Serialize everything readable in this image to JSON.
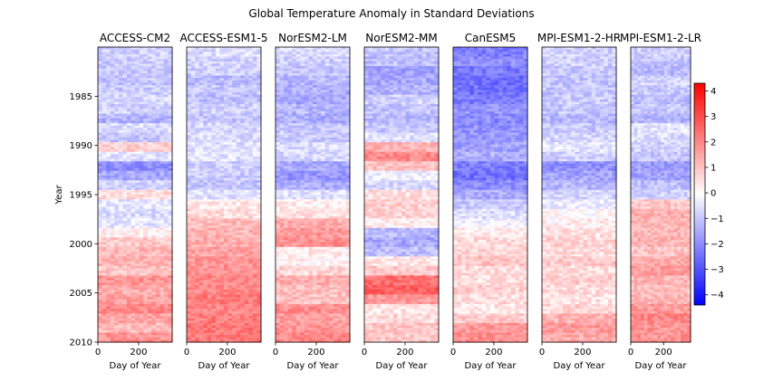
{
  "chart_data": {
    "type": "heatmap",
    "title": "Global Temperature Anomaly in Standard Deviations",
    "ylabel": "Year",
    "xlabel": "Day of Year",
    "x_range": [
      0,
      365
    ],
    "x_ticks": [
      0,
      200
    ],
    "y_range": [
      1980,
      2010
    ],
    "y_ticks": [
      1985,
      1990,
      1995,
      2000,
      2005,
      2010
    ],
    "colormap": "bwr",
    "colors": {
      "low": "#0000ff",
      "mid": "#ffffff",
      "high": "#ff0000"
    },
    "colorbar": {
      "vmin": -4.4,
      "vmax": 4.3,
      "ticks": [
        4,
        3,
        2,
        1,
        0,
        -1,
        -2,
        -3,
        -4
      ]
    },
    "panels": [
      {
        "name": "ACCESS-CM2",
        "yearly_anomaly": [
          -0.8,
          -0.9,
          -1.0,
          -1.0,
          -0.9,
          -0.7,
          -0.8,
          -1.3,
          -0.6,
          -1.0,
          0.8,
          -0.5,
          -1.9,
          -1.5,
          -0.8,
          0.6,
          -0.4,
          -0.6,
          -0.4,
          0.2,
          0.9,
          1.2,
          1.3,
          1.0,
          1.8,
          1.4,
          1.6,
          2.0,
          1.5,
          1.2,
          1.8
        ]
      },
      {
        "name": "ACCESS-ESM1-5",
        "yearly_anomaly": [
          -0.6,
          -0.8,
          -0.8,
          -1.2,
          -0.9,
          -1.1,
          -0.8,
          -1.0,
          -0.7,
          -0.6,
          -0.5,
          -0.4,
          -0.8,
          -0.9,
          -1.0,
          -0.5,
          0.4,
          0.6,
          1.1,
          1.3,
          1.4,
          1.6,
          1.8,
          1.8,
          2.0,
          2.0,
          2.2,
          2.0,
          2.2,
          2.3,
          2.2
        ]
      },
      {
        "name": "NorESM2-LM",
        "yearly_anomaly": [
          -0.6,
          -0.8,
          -1.0,
          -1.2,
          -1.4,
          -1.5,
          -1.2,
          -1.4,
          -1.0,
          -0.9,
          -0.6,
          -0.7,
          -1.5,
          -1.8,
          -1.4,
          -0.5,
          0.3,
          0.5,
          1.4,
          1.7,
          1.9,
          0.3,
          0.2,
          0.7,
          1.4,
          1.1,
          1.0,
          1.9,
          1.6,
          1.8,
          2.0
        ]
      },
      {
        "name": "NorESM2-MM",
        "yearly_anomaly": [
          -1.0,
          -1.1,
          -1.6,
          -1.5,
          -1.3,
          -0.8,
          -1.0,
          -1.2,
          -0.9,
          -0.5,
          1.3,
          2.0,
          1.0,
          -0.3,
          -0.7,
          0.6,
          0.8,
          0.7,
          0.3,
          -1.2,
          -1.5,
          -1.1,
          0.4,
          0.9,
          2.4,
          2.7,
          1.7,
          0.4,
          0.6,
          1.0,
          0.9
        ]
      },
      {
        "name": "CanESM5",
        "yearly_anomaly": [
          -2.2,
          -2.0,
          -2.3,
          -2.5,
          -2.4,
          -2.2,
          -1.8,
          -2.0,
          -1.9,
          -1.8,
          -1.6,
          -1.4,
          -2.2,
          -2.4,
          -2.0,
          -1.4,
          -1.0,
          -0.6,
          -0.2,
          0.3,
          0.6,
          0.7,
          1.0,
          0.6,
          0.5,
          0.8,
          0.6,
          0.4,
          0.9,
          1.7,
          1.9
        ]
      },
      {
        "name": "MPI-ESM1-2-HR",
        "yearly_anomaly": [
          -0.8,
          -0.8,
          -0.9,
          -1.0,
          -1.0,
          -0.9,
          -0.9,
          -1.2,
          -0.9,
          -0.7,
          -0.4,
          -0.8,
          -1.9,
          -1.6,
          -1.2,
          -0.7,
          -0.3,
          0.1,
          0.3,
          0.5,
          0.7,
          0.6,
          0.9,
          0.6,
          0.8,
          0.6,
          0.5,
          0.7,
          1.3,
          1.7,
          1.4
        ]
      },
      {
        "name": "MPI-ESM1-2-LR",
        "yearly_anomaly": [
          -0.8,
          -1.0,
          -1.2,
          -0.7,
          -0.9,
          -1.1,
          -0.9,
          -1.3,
          -0.5,
          -0.6,
          -0.8,
          -1.0,
          -1.7,
          -1.6,
          -1.1,
          -0.8,
          0.9,
          1.3,
          1.2,
          1.2,
          1.3,
          1.0,
          1.4,
          1.7,
          1.3,
          1.1,
          1.2,
          1.7,
          2.0,
          1.8,
          1.8
        ]
      }
    ]
  }
}
